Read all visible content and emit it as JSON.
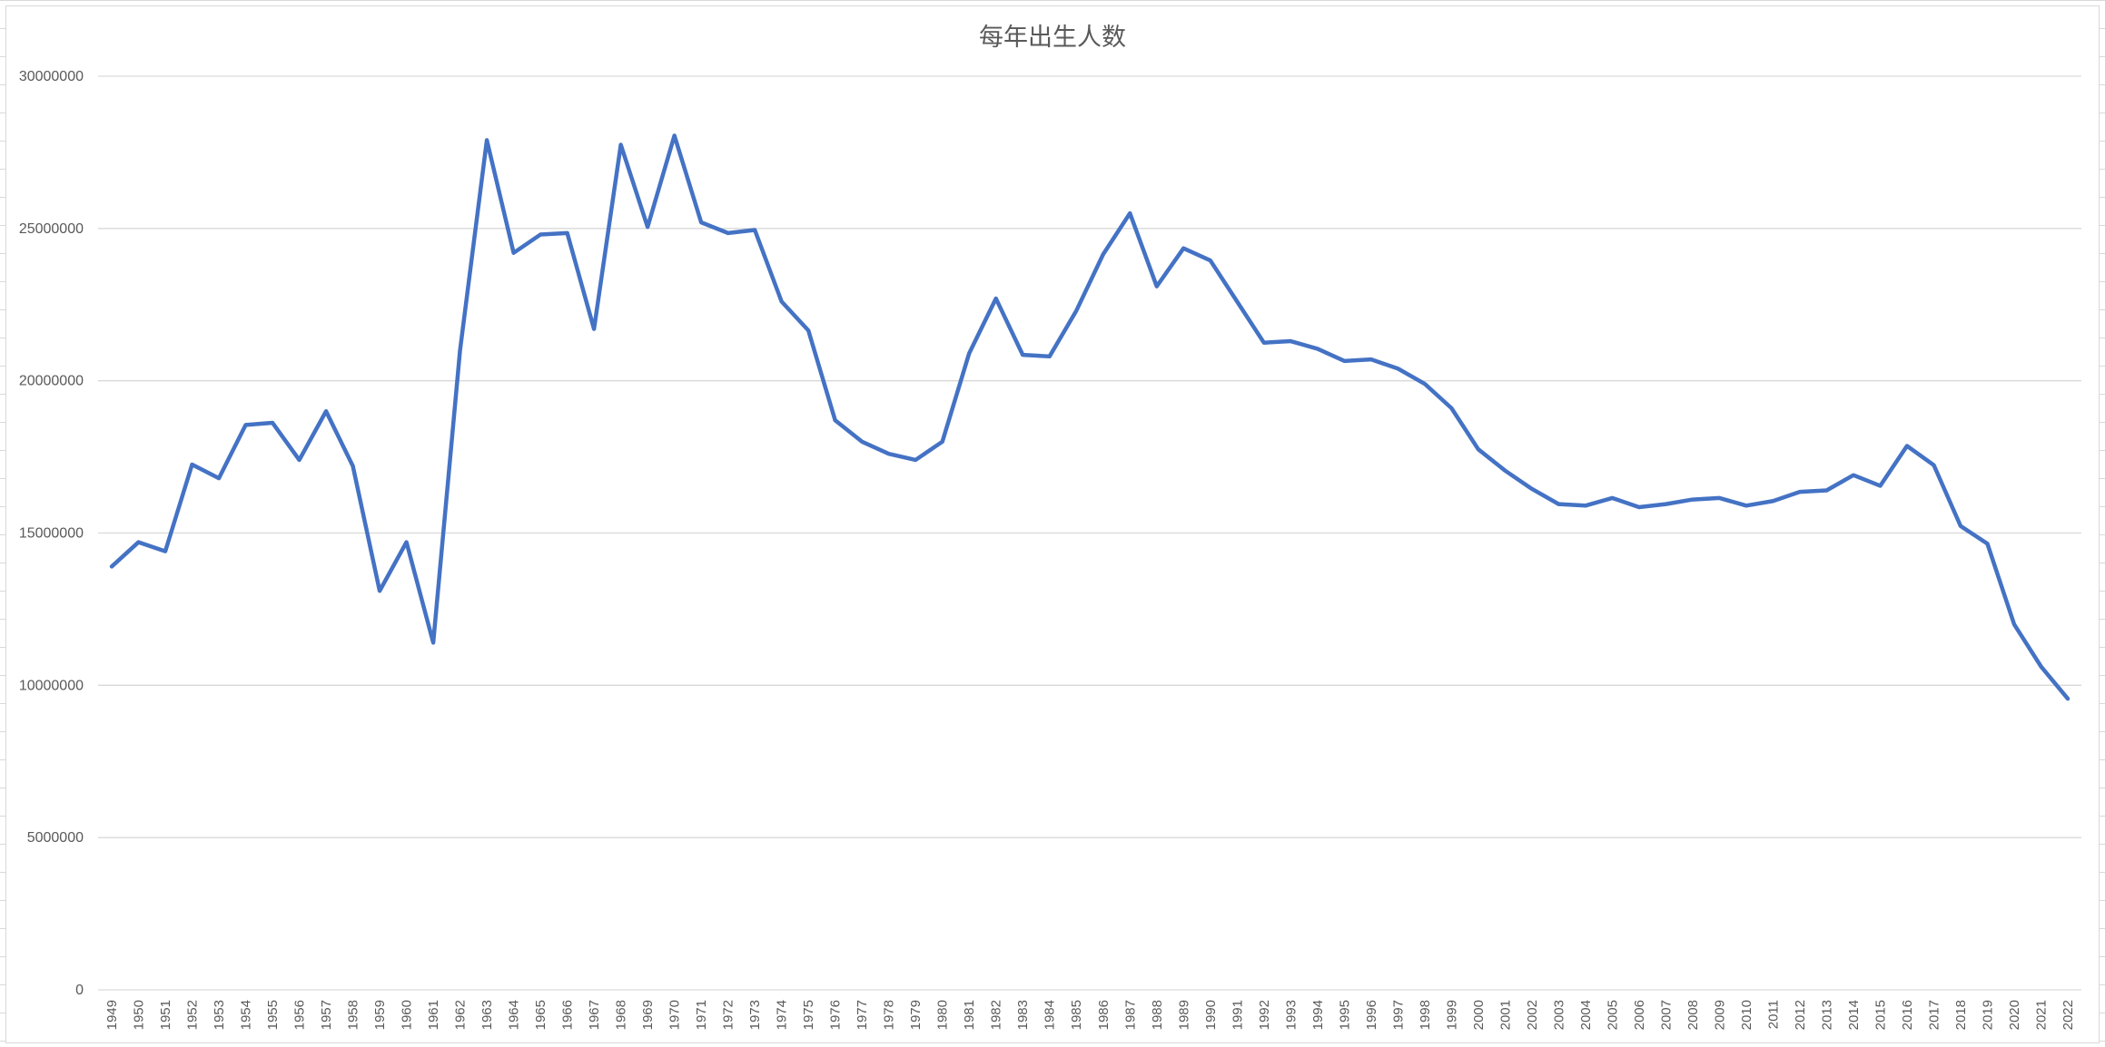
{
  "chart_data": {
    "type": "line",
    "title": "每年出生人数",
    "xlabel": "",
    "ylabel": "",
    "ylim": [
      0,
      30000000
    ],
    "yticks": [
      0,
      5000000,
      10000000,
      15000000,
      20000000,
      25000000,
      30000000
    ],
    "ytick_labels": [
      "0",
      "5000000",
      "10000000",
      "15000000",
      "20000000",
      "25000000",
      "30000000"
    ],
    "grid": "horizontal",
    "legend": "none",
    "colors": {
      "series": "#4472C4",
      "grid": "#D9D9D9",
      "text": "#595959"
    },
    "x": [
      "1949",
      "1950",
      "1951",
      "1952",
      "1953",
      "1954",
      "1955",
      "1956",
      "1957",
      "1958",
      "1959",
      "1960",
      "1961",
      "1962",
      "1963",
      "1964",
      "1965",
      "1966",
      "1967",
      "1968",
      "1969",
      "1970",
      "1971",
      "1972",
      "1973",
      "1974",
      "1975",
      "1976",
      "1977",
      "1978",
      "1979",
      "1980",
      "1981",
      "1982",
      "1983",
      "1984",
      "1985",
      "1986",
      "1987",
      "1988",
      "1989",
      "1990",
      "1991",
      "1992",
      "1993",
      "1994",
      "1995",
      "1996",
      "1997",
      "1998",
      "1999",
      "2000",
      "2001",
      "2002",
      "2003",
      "2004",
      "2005",
      "2006",
      "2007",
      "2008",
      "2009",
      "2010",
      "2011",
      "2012",
      "2013",
      "2014",
      "2015",
      "2016",
      "2017",
      "2018",
      "2019",
      "2020",
      "2021",
      "2022"
    ],
    "series": [
      {
        "name": "",
        "values": [
          13900000,
          14700000,
          14400000,
          17250000,
          16800000,
          18550000,
          18620000,
          17400000,
          19000000,
          17200000,
          13100000,
          14700000,
          11400000,
          21000000,
          27900000,
          24200000,
          24800000,
          24850000,
          21700000,
          27750000,
          25050000,
          28050000,
          25200000,
          24850000,
          24950000,
          22600000,
          21650000,
          18700000,
          18000000,
          17600000,
          17400000,
          18000000,
          20900000,
          22700000,
          20850000,
          20800000,
          22300000,
          24150000,
          25500000,
          23100000,
          24350000,
          23950000,
          22600000,
          21250000,
          21300000,
          21050000,
          20650000,
          20700000,
          20400000,
          19900000,
          19100000,
          17750000,
          17050000,
          16450000,
          15950000,
          15900000,
          16150000,
          15850000,
          15950000,
          16100000,
          16150000,
          15900000,
          16050000,
          16350000,
          16400000,
          16900000,
          16550000,
          17860000,
          17230000,
          15230000,
          14650000,
          12000000,
          10620000,
          9560000
        ]
      }
    ]
  }
}
